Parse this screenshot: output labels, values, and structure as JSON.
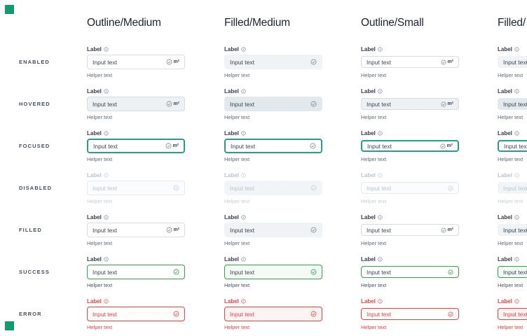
{
  "canvas": {
    "background": "#ffffff",
    "marker_color": "#0f9d6c"
  },
  "columns": [
    {
      "id": "outline-medium",
      "title": "Outline/Medium",
      "variant": "outline",
      "size": "medium"
    },
    {
      "id": "filled-medium",
      "title": "Filled/Medium",
      "variant": "filled",
      "size": "medium"
    },
    {
      "id": "outline-small",
      "title": "Outline/Small",
      "variant": "outline",
      "size": "small"
    },
    {
      "id": "filled-small",
      "title": "Filled/",
      "variant": "filled",
      "size": "small"
    }
  ],
  "field": {
    "label": "Label",
    "value": "Input text",
    "helper": "Helper text",
    "unit": "m²",
    "label_icon": "info-circle-icon",
    "trailing_icon": "check-circle-icon"
  },
  "accent_colors": {
    "focus_teal": "#299c8a",
    "success_green": "#33a44a",
    "error_red": "#ee4344"
  },
  "states": [
    {
      "id": "enabled",
      "row_label": "ENABLED",
      "show_unit": true,
      "outline": {
        "bg": "#ffffff",
        "border": "#d6dce2",
        "border_width": 1
      },
      "filled": {
        "bg": "#f0f3f5",
        "border": "transparent",
        "border_width": 1
      },
      "label_color": "#333c49",
      "info_color": "#707b8c",
      "text_color": "#3c4554",
      "helper_color": "#5f6b7d",
      "icon_color": "#7f8a99"
    },
    {
      "id": "hovered",
      "row_label": "HOVERED",
      "show_unit": true,
      "outline": {
        "bg": "#edf1f3",
        "border": "#d6dce2",
        "border_width": 1
      },
      "filled": {
        "bg": "#e2e8ec",
        "border": "transparent",
        "border_width": 1
      },
      "label_color": "#333c49",
      "info_color": "#707b8c",
      "text_color": "#3c4554",
      "helper_color": "#5f6b7d",
      "icon_color": "#7f8a99"
    },
    {
      "id": "focused",
      "row_label": "FOCUSED",
      "show_unit": true,
      "outline": {
        "bg": "#ffffff",
        "border": "#299c8a",
        "border_width": 2
      },
      "filled": {
        "bg": "#ffffff",
        "border": "#299c8a",
        "border_width": 2
      },
      "label_color": "#333c49",
      "info_color": "#707b8c",
      "text_color": "#3c4554",
      "helper_color": "#5f6b7d",
      "icon_color": "#7f8a99"
    },
    {
      "id": "disabled",
      "row_label": "DISABLED",
      "show_unit": false,
      "outline": {
        "bg": "#fbfcfd",
        "border": "#e5eaef",
        "border_width": 1
      },
      "filled": {
        "bg": "#f2f5f7",
        "border": "transparent",
        "border_width": 1
      },
      "label_color": "#bac3cd",
      "info_color": "#bac3cd",
      "text_color": "#bac3cd",
      "helper_color": "#c4ccd6",
      "icon_color": "#c8d0d9"
    },
    {
      "id": "filled",
      "row_label": "FILLED",
      "show_unit": true,
      "outline": {
        "bg": "#ffffff",
        "border": "#d6dce2",
        "border_width": 1
      },
      "filled": {
        "bg": "#f0f3f5",
        "border": "transparent",
        "border_width": 1
      },
      "label_color": "#333c49",
      "info_color": "#707b8c",
      "text_color": "#3c4554",
      "helper_color": "#5f6b7d",
      "icon_color": "#7f8a99"
    },
    {
      "id": "success",
      "row_label": "SUCCESS",
      "show_unit": false,
      "outline": {
        "bg": "#ffffff",
        "border": "#33a44a",
        "border_width": 1.5
      },
      "filled": {
        "bg": "#f4faf5",
        "border": "#33a44a",
        "border_width": 1.5
      },
      "label_color": "#333c49",
      "info_color": "#707b8c",
      "text_color": "#3c4554",
      "helper_color": "#49525f",
      "icon_color": "#2ba24a"
    },
    {
      "id": "error",
      "row_label": "ERROR",
      "show_unit": false,
      "outline": {
        "bg": "#fffcfc",
        "border": "#ee4344",
        "border_width": 1.5
      },
      "filled": {
        "bg": "#fdf3f3",
        "border": "#ee4344",
        "border_width": 1.5
      },
      "label_color": "#ee4344",
      "info_color": "#ee4344",
      "text_color": "#ee4344",
      "helper_color": "#ee4344",
      "icon_color": "#ee4344"
    }
  ]
}
